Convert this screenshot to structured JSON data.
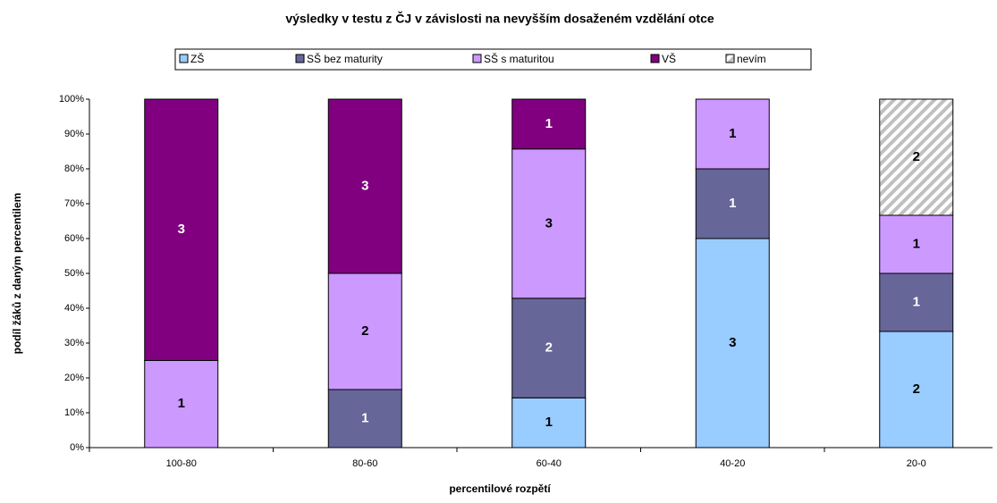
{
  "chart_data": {
    "type": "bar",
    "stacked": "percent",
    "title": "výsledky v testu z ČJ v závislosti na nevyšším dosaženém vzdělání otce",
    "xlabel": "percentilové rozpětí",
    "ylabel": "podíl žáků z daným percentilem",
    "categories": [
      "100-80",
      "80-60",
      "60-40",
      "40-20",
      "20-0"
    ],
    "series": [
      {
        "name": "ZŠ",
        "color": "#99ccff",
        "values": [
          0,
          0,
          1,
          3,
          2
        ]
      },
      {
        "name": "SŠ bez maturity",
        "color": "#666699",
        "values": [
          0,
          1,
          2,
          1,
          1
        ]
      },
      {
        "name": "SŠ s maturitou",
        "color": "#cc99ff",
        "values": [
          1,
          2,
          3,
          1,
          1
        ]
      },
      {
        "name": "VŠ",
        "color": "#800080",
        "values": [
          3,
          3,
          1,
          0,
          0
        ]
      },
      {
        "name": "nevím",
        "color": "hatch",
        "values": [
          0,
          0,
          0,
          0,
          2
        ]
      }
    ],
    "ylim": [
      0,
      100
    ],
    "yticks": [
      {
        "value": 0,
        "label": "0%"
      },
      {
        "value": 10,
        "label": "10%"
      },
      {
        "value": 20,
        "label": "20%"
      },
      {
        "value": 30,
        "label": "30%"
      },
      {
        "value": 40,
        "label": "40%"
      },
      {
        "value": 50,
        "label": "50%"
      },
      {
        "value": 60,
        "label": "60%"
      },
      {
        "value": 70,
        "label": "70%"
      },
      {
        "value": 80,
        "label": "80%"
      },
      {
        "value": 90,
        "label": "90%"
      },
      {
        "value": 100,
        "label": "100%"
      }
    ],
    "legend": "top"
  }
}
